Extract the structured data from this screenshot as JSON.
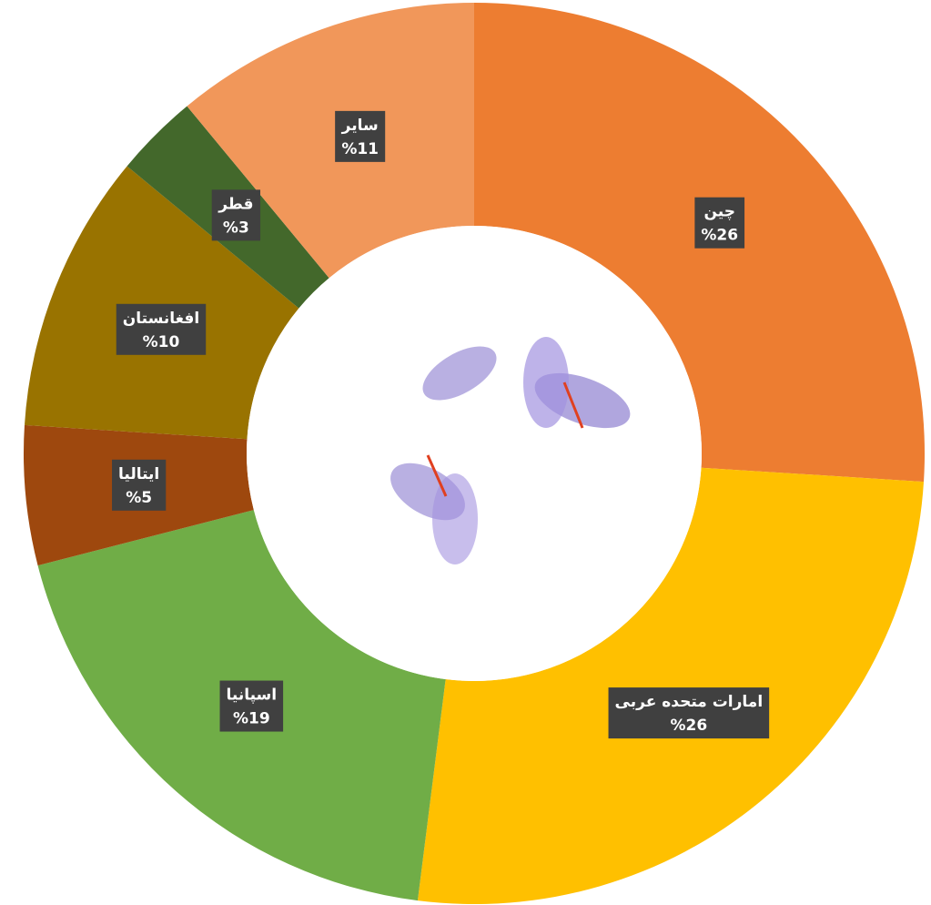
{
  "chart_data": {
    "type": "donut",
    "categories": [
      "چین",
      "امارات متحده عربی",
      "اسپانیا",
      "ایتالیا",
      "افغانستان",
      "قطر",
      "سایر"
    ],
    "values": [
      26,
      26,
      19,
      5,
      10,
      3,
      11
    ],
    "value_labels": [
      "%26",
      "%26",
      "%19",
      "%5",
      "%10",
      "%3",
      "%11"
    ],
    "colors": [
      "#ED7D31",
      "#FFC000",
      "#70AD47",
      "#9E480E",
      "#997300",
      "#43682B",
      "#F1975A"
    ]
  }
}
